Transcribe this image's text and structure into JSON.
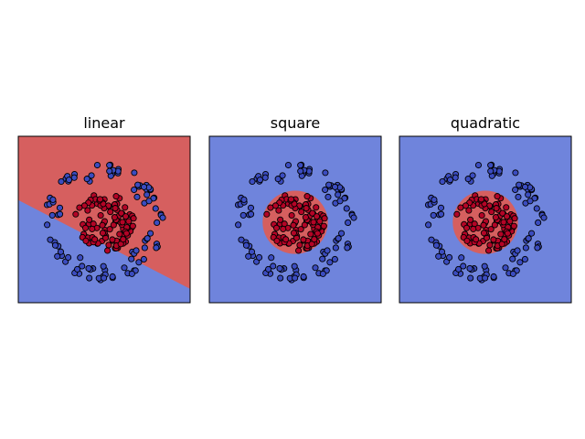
{
  "chart_data": [
    {
      "type": "scatter",
      "title": "linear",
      "xlim": [
        -1.5,
        1.5
      ],
      "ylim": [
        -1.5,
        1.5
      ],
      "grid": false,
      "decision_boundary": {
        "kind": "linear",
        "line_points": [
          [
            -1.5,
            0.35
          ],
          [
            1.5,
            -1.25
          ]
        ],
        "above_class": "red",
        "below_class": "blue"
      },
      "class_colors": {
        "red": "#d65f5f",
        "blue": "#6f84dc"
      },
      "point_colors": {
        "inner": "#b40426",
        "outer": "#3b4cc0"
      },
      "series": [
        {
          "class": "inner",
          "radius_range": [
            0.0,
            0.52
          ],
          "count": 100
        },
        {
          "class": "outer",
          "radius_range": [
            0.7,
            1.05
          ],
          "count": 100
        }
      ]
    },
    {
      "type": "scatter",
      "title": "square",
      "xlim": [
        -1.5,
        1.5
      ],
      "ylim": [
        -1.5,
        1.5
      ],
      "grid": false,
      "decision_boundary": {
        "kind": "circle",
        "center": [
          0.0,
          -0.05
        ],
        "radius": 0.57,
        "inside_class": "red",
        "outside_class": "blue"
      },
      "class_colors": {
        "red": "#d65f5f",
        "blue": "#6f84dc"
      },
      "point_colors": {
        "inner": "#b40426",
        "outer": "#3b4cc0"
      },
      "series": [
        {
          "class": "inner",
          "radius_range": [
            0.0,
            0.52
          ],
          "count": 100
        },
        {
          "class": "outer",
          "radius_range": [
            0.7,
            1.05
          ],
          "count": 100
        }
      ]
    },
    {
      "type": "scatter",
      "title": "quadratic",
      "xlim": [
        -1.5,
        1.5
      ],
      "ylim": [
        -1.5,
        1.5
      ],
      "grid": false,
      "decision_boundary": {
        "kind": "circle",
        "center": [
          0.0,
          -0.05
        ],
        "radius": 0.57,
        "inside_class": "red",
        "outside_class": "blue"
      },
      "class_colors": {
        "red": "#d65f5f",
        "blue": "#6f84dc"
      },
      "point_colors": {
        "inner": "#b40426",
        "outer": "#3b4cc0"
      },
      "series": [
        {
          "class": "inner",
          "radius_range": [
            0.0,
            0.52
          ],
          "count": 100
        },
        {
          "class": "outer",
          "radius_range": [
            0.7,
            1.05
          ],
          "count": 100
        }
      ]
    }
  ]
}
